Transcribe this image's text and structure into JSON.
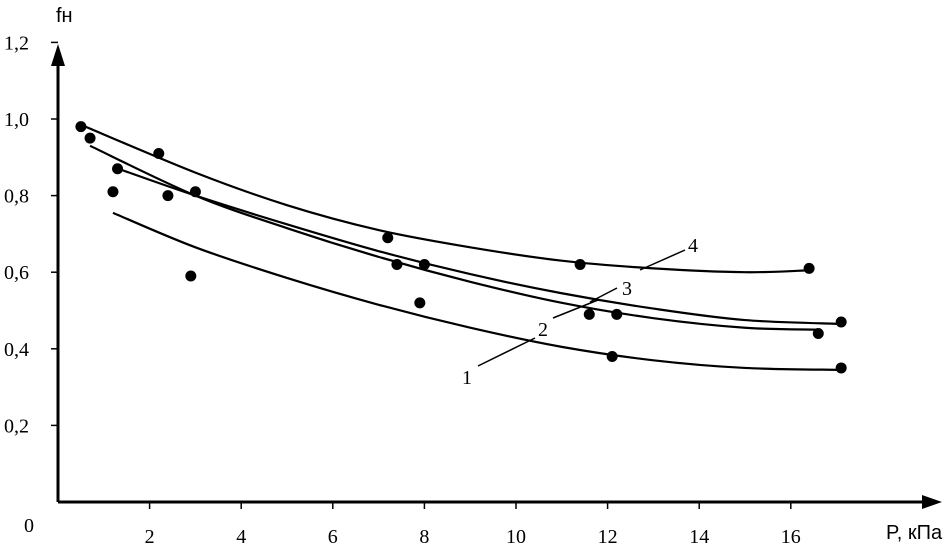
{
  "chart_data": {
    "type": "scatter",
    "title": "",
    "xlabel": "P, кПа",
    "ylabel": "fн",
    "origin_label": "0",
    "xlim": [
      0,
      18.5
    ],
    "ylim": [
      0,
      1.2
    ],
    "x_ticks": [
      2,
      4,
      6,
      8,
      10,
      12,
      14,
      16
    ],
    "x_tick_labels": [
      "2",
      "4",
      "6",
      "8",
      "10",
      "12",
      "14",
      "16"
    ],
    "y_ticks": [
      0.2,
      0.4,
      0.6,
      0.8,
      1.0,
      1.2
    ],
    "y_tick_labels": [
      "0,2",
      "0,4",
      "0,6",
      "0,8",
      "1,0",
      "1,2"
    ],
    "grid": false,
    "legend": "none",
    "points": [
      {
        "x": 0.5,
        "y": 0.98
      },
      {
        "x": 0.7,
        "y": 0.95
      },
      {
        "x": 1.2,
        "y": 0.81
      },
      {
        "x": 1.3,
        "y": 0.87
      },
      {
        "x": 2.2,
        "y": 0.91
      },
      {
        "x": 2.4,
        "y": 0.8
      },
      {
        "x": 2.9,
        "y": 0.59
      },
      {
        "x": 3.0,
        "y": 0.81
      },
      {
        "x": 7.2,
        "y": 0.69
      },
      {
        "x": 7.4,
        "y": 0.62
      },
      {
        "x": 7.9,
        "y": 0.52
      },
      {
        "x": 8.0,
        "y": 0.62
      },
      {
        "x": 11.4,
        "y": 0.62
      },
      {
        "x": 11.6,
        "y": 0.49
      },
      {
        "x": 12.1,
        "y": 0.38
      },
      {
        "x": 12.2,
        "y": 0.49
      },
      {
        "x": 16.4,
        "y": 0.61
      },
      {
        "x": 16.6,
        "y": 0.44
      },
      {
        "x": 17.1,
        "y": 0.35
      },
      {
        "x": 17.1,
        "y": 0.47
      }
    ],
    "series": [
      {
        "name": "1",
        "x": [
          1.2,
          3,
          5,
          7,
          9,
          11,
          13,
          15,
          17.1
        ],
        "y": [
          0.755,
          0.665,
          0.585,
          0.515,
          0.455,
          0.405,
          0.37,
          0.35,
          0.345
        ]
      },
      {
        "name": "2",
        "x": [
          0.7,
          3,
          5,
          7,
          9,
          11,
          13,
          15,
          16.6
        ],
        "y": [
          0.93,
          0.8,
          0.715,
          0.64,
          0.575,
          0.52,
          0.48,
          0.455,
          0.45
        ]
      },
      {
        "name": "3",
        "x": [
          1.2,
          3,
          5,
          7,
          9,
          11,
          13,
          15,
          17.1
        ],
        "y": [
          0.875,
          0.8,
          0.725,
          0.655,
          0.595,
          0.545,
          0.505,
          0.475,
          0.465
        ]
      },
      {
        "name": "4",
        "x": [
          0.5,
          3,
          5,
          7,
          9,
          11,
          13,
          15,
          16.4
        ],
        "y": [
          0.985,
          0.86,
          0.775,
          0.71,
          0.665,
          0.63,
          0.61,
          0.6,
          0.605
        ]
      }
    ]
  }
}
